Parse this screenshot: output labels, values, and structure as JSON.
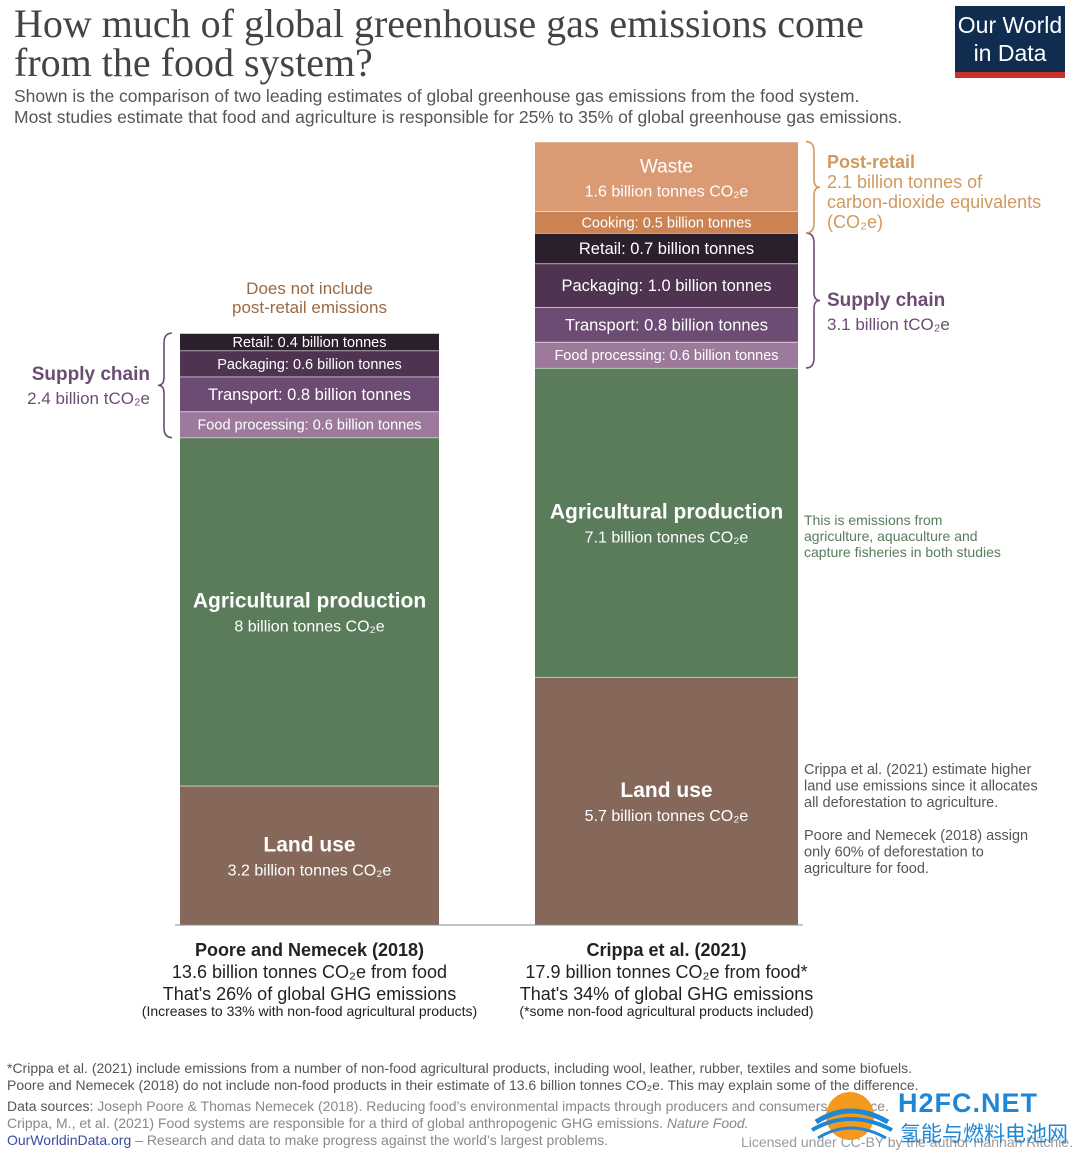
{
  "title": "How much of global greenhouse gas emissions come from the food system?",
  "subtitle_lines": [
    "Shown is the comparison of two leading estimates of global greenhouse gas emissions from the food system.",
    "Most studies estimate that food and agriculture is responsible for 25% to 35% of global greenhouse gas emissions."
  ],
  "logo": {
    "line1": "Our World",
    "line2": "in Data"
  },
  "colors": {
    "land_use": "#86685a",
    "agricultural_production": "#5a7c5b",
    "food_processing": "#9d7a9b",
    "transport": "#6d4c73",
    "packaging": "#4f3452",
    "retail": "#2b1f2d",
    "cooking": "#cc8354",
    "waste": "#d99a74",
    "supply_chain_text": "#6d4c73",
    "post_retail_text": "#d09a5f",
    "note_green": "#5a7c5b",
    "does_not_include": "#9a6a44"
  },
  "chart_data": {
    "type": "bar",
    "stacked": true,
    "unit": "billion tonnes CO2e",
    "ylim": [
      0,
      17.9
    ],
    "studies": [
      {
        "name": "Poore and Nemecek (2018)",
        "total_label": "13.6 billion tonnes CO₂e from food",
        "share_label": "That's 26% of global GHG emissions",
        "note_label": "(Increases to 33% with non-food agricultural products)",
        "segments": [
          {
            "key": "land_use",
            "value": 3.2,
            "title": "Land use",
            "sub": "3.2 billion tonnes CO₂e"
          },
          {
            "key": "agricultural_production",
            "value": 8.0,
            "title": "Agricultural production",
            "sub": "8 billion tonnes CO₂e"
          },
          {
            "key": "food_processing",
            "value": 0.6,
            "label": "Food processing: 0.6 billion tonnes"
          },
          {
            "key": "transport",
            "value": 0.8,
            "label": "Transport: 0.8 billion tonnes"
          },
          {
            "key": "packaging",
            "value": 0.6,
            "label": "Packaging: 0.6 billion tonnes"
          },
          {
            "key": "retail",
            "value": 0.4,
            "label": "Retail: 0.4 billion tonnes"
          }
        ],
        "top_note": [
          "Does not include",
          "post-retail emissions"
        ],
        "supply_chain": {
          "title": "Supply chain",
          "value": "2.4 billion tCO₂e"
        }
      },
      {
        "name": "Crippa et al. (2021)",
        "total_label": "17.9 billion tonnes CO₂e from food*",
        "share_label": "That's 34% of global GHG emissions",
        "note_label": "(*some non-food agricultural products included)",
        "segments": [
          {
            "key": "land_use",
            "value": 5.7,
            "title": "Land use",
            "sub": "5.7 billion tonnes CO₂e"
          },
          {
            "key": "agricultural_production",
            "value": 7.1,
            "title": "Agricultural production",
            "sub": "7.1 billion tonnes CO₂e"
          },
          {
            "key": "food_processing",
            "value": 0.6,
            "label": "Food processing: 0.6 billion tonnes"
          },
          {
            "key": "transport",
            "value": 0.8,
            "label": "Transport: 0.8 billion tonnes"
          },
          {
            "key": "packaging",
            "value": 1.0,
            "label": "Packaging: 1.0 billion tonnes"
          },
          {
            "key": "retail",
            "value": 0.7,
            "label": "Retail: 0.7 billion tonnes"
          },
          {
            "key": "cooking",
            "value": 0.5,
            "label": "Cooking: 0.5 billion tonnes"
          },
          {
            "key": "waste",
            "value": 1.6,
            "title": "Waste",
            "sub": "1.6 billion tonnes CO₂e"
          }
        ],
        "supply_chain": {
          "title": "Supply chain",
          "value": "3.1 billion tCO₂e"
        },
        "post_retail": {
          "title": "Post-retail",
          "lines": [
            "2.1 billion tonnes of",
            "carbon-dioxide equivalents",
            "(CO₂e)"
          ]
        },
        "ag_note": [
          "This is emissions from",
          "agriculture, aquaculture and",
          "capture fisheries in both studies"
        ],
        "land_note_1": [
          "Crippa et al. (2021) estimate higher",
          "land use emissions since it allocates",
          "all deforestation to agriculture."
        ],
        "land_note_2": [
          "Poore and Nemecek (2018) assign",
          "only 60% of deforestation to",
          "agriculture for food."
        ]
      }
    ]
  },
  "footnote_lines": [
    "*Crippa et al. (2021) include emissions from a number of non-food agricultural products, including wool, leather, rubber, textiles and some biofuels.",
    "Poore and Nemecek (2018) do not include non-food products in their estimate of 13.6 billion tonnes CO₂e. This may explain some of the difference."
  ],
  "sources": {
    "label": "Data sources:",
    "line1": "Joseph Poore & Thomas Nemecek (2018). Reducing food’s environmental impacts through producers and consumers. Science.",
    "line2_text": "Crippa, M., et al. (2021) Food systems are responsible for a third of global anthropogenic GHG emissions.",
    "line2_journal": "Nature Food."
  },
  "owid": {
    "link": "OurWorldinData.org",
    "tagline": " – Research and data to make progress against the world’s largest problems."
  },
  "license": "Licensed under CC-BY by the author Hannah Ritchie.",
  "watermark": {
    "en": "H2FC.NET",
    "cn": "氢能与燃料电池网"
  }
}
